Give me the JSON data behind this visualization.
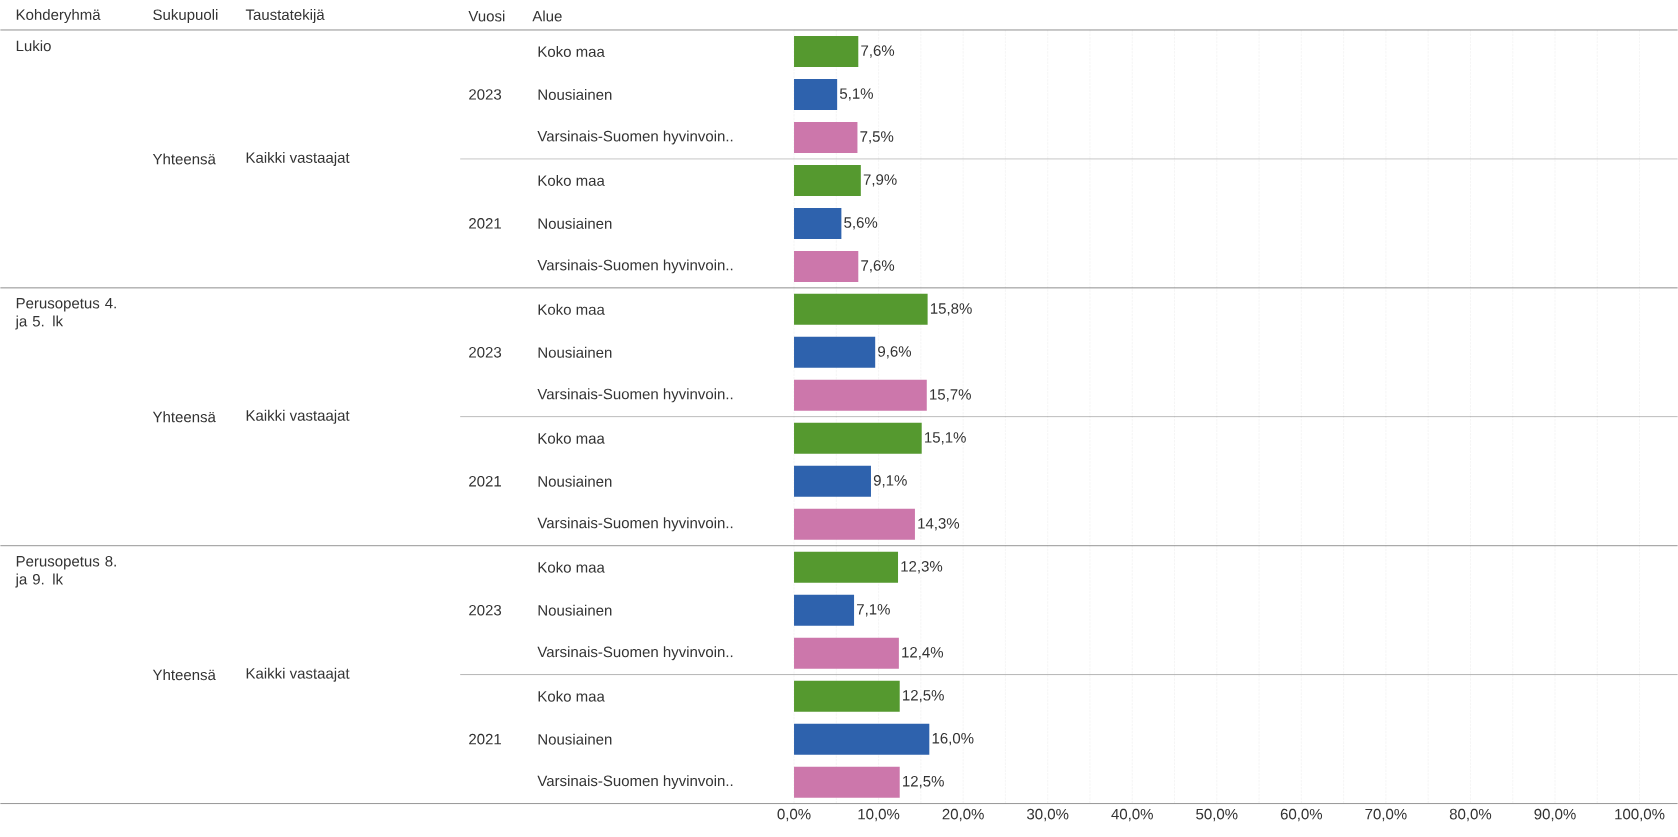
{
  "chart_data": {
    "type": "bar",
    "orientation": "horizontal",
    "ylabel": "Alue",
    "categories": [
      "Koko maa",
      "Nousiainen",
      "Varsinais-Suomen hyvinvoin..",
      "Koko maa",
      "Nousiainen",
      "Varsinais-Suomen hyvinvoin..",
      "Koko maa",
      "Nousiainen",
      "Varsinais-Suomen hyvinvoin..",
      "Koko maa",
      "Nousiainen",
      "Varsinais-Suomen hyvinvoin..",
      "Koko maa",
      "Nousiainen",
      "Varsinais-Suomen hyvinvoin..",
      "Koko maa",
      "Nousiainen",
      "Varsinais-Suomen hyvinvoin.."
    ],
    "values": [
      7.6,
      5.1,
      7.5,
      7.9,
      5.6,
      7.6,
      15.8,
      9.6,
      15.7,
      15.1,
      9.1,
      14.3,
      12.3,
      7.1,
      12.4,
      12.5,
      16.0,
      12.5
    ],
    "value_labels": [
      "7,6%",
      "5,1%",
      "7,5%",
      "7,9%",
      "5,6%",
      "7,6%",
      "15,8%",
      "9,6%",
      "15,7%",
      "15,1%",
      "9,1%",
      "14,3%",
      "12,3%",
      "7,1%",
      "12,4%",
      "12,5%",
      "16,0%",
      "12,5%"
    ],
    "colors": [
      "#55992f",
      "#2e62ad",
      "#cc77ab",
      "#55992f",
      "#2e62ad",
      "#cc77ab",
      "#55992f",
      "#2e62ad",
      "#cc77ab",
      "#55992f",
      "#2e62ad",
      "#cc77ab",
      "#55992f",
      "#2e62ad",
      "#cc77ab",
      "#55992f",
      "#2e62ad",
      "#cc77ab"
    ],
    "xlim": [
      0,
      104.5
    ],
    "xticks": [
      {
        "value": 0,
        "label": "0,0%"
      },
      {
        "value": 5,
        "label": null
      },
      {
        "value": 10,
        "label": "10,0%"
      },
      {
        "value": 15,
        "label": null
      },
      {
        "value": 20,
        "label": "20,0%"
      },
      {
        "value": 25,
        "label": null
      },
      {
        "value": 30,
        "label": "30,0%"
      },
      {
        "value": 35,
        "label": null
      },
      {
        "value": 40,
        "label": "40,0%"
      },
      {
        "value": 45,
        "label": null
      },
      {
        "value": 50,
        "label": "50,0%"
      },
      {
        "value": 55,
        "label": null
      },
      {
        "value": 60,
        "label": "60,0%"
      },
      {
        "value": 65,
        "label": null
      },
      {
        "value": 70,
        "label": "70,0%"
      },
      {
        "value": 75,
        "label": null
      },
      {
        "value": 80,
        "label": "80,0%"
      },
      {
        "value": 85,
        "label": null
      },
      {
        "value": 90,
        "label": "90,0%"
      },
      {
        "value": 95,
        "label": null
      },
      {
        "value": 100,
        "label": "100,0%"
      }
    ],
    "grid": "x",
    "annotations": [
      "Kohderyhmä",
      "Sukupuoli",
      "Taustatekijä",
      "Vuosi",
      "Lukio",
      "Yhteensä",
      "Kaikki vastaajat",
      "2023",
      "2021",
      "Perusopetus 4. ja 5. lk",
      "Yhteensä",
      "Kaikki vastaajat",
      "2023",
      "2021",
      "Perusopetus 8. ja 9. lk",
      "Yhteensä",
      "Kaikki vastaajat",
      "2023",
      "2021"
    ]
  }
}
